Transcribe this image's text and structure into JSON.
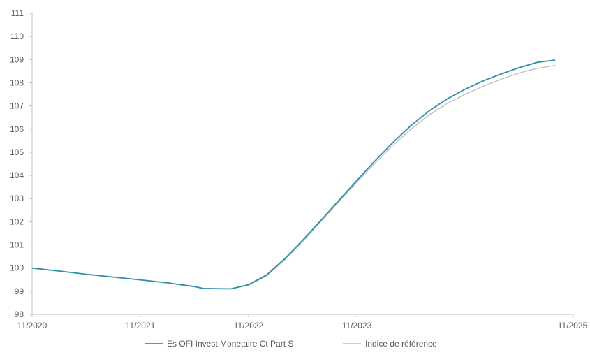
{
  "chart_data": {
    "type": "line",
    "title": "",
    "xlabel": "",
    "ylabel": "",
    "ylim": [
      98,
      111
    ],
    "yticks": [
      98,
      99,
      100,
      101,
      102,
      103,
      104,
      105,
      106,
      107,
      108,
      109,
      110,
      111
    ],
    "xrange": [
      "2020-11",
      "2025-11"
    ],
    "xticks": [
      {
        "label": "11/2020",
        "date": "2020-11"
      },
      {
        "label": "11/2021",
        "date": "2021-11"
      },
      {
        "label": "11/2022",
        "date": "2022-11"
      },
      {
        "label": "11/2023",
        "date": "2023-11"
      },
      {
        "label": "11/2025",
        "date": "2025-11"
      }
    ],
    "grid": false,
    "legend_position": "bottom",
    "series": [
      {
        "name": "Es OFI Invest Monetaire Ct Part S",
        "color": "#2E8FA8",
        "points": [
          [
            "2020-11",
            100.0
          ],
          [
            "2021-02",
            99.87
          ],
          [
            "2021-05",
            99.73
          ],
          [
            "2021-08",
            99.61
          ],
          [
            "2021-11",
            99.49
          ],
          [
            "2022-02",
            99.36
          ],
          [
            "2022-05",
            99.2
          ],
          [
            "2022-06",
            99.12
          ],
          [
            "2022-09",
            99.1
          ],
          [
            "2022-11",
            99.28
          ],
          [
            "2023-01",
            99.7
          ],
          [
            "2023-03",
            100.4
          ],
          [
            "2023-05",
            101.2
          ],
          [
            "2023-07",
            102.05
          ],
          [
            "2023-09",
            102.92
          ],
          [
            "2023-11",
            103.78
          ],
          [
            "2024-01",
            104.62
          ],
          [
            "2024-03",
            105.42
          ],
          [
            "2024-05",
            106.15
          ],
          [
            "2024-07",
            106.78
          ],
          [
            "2024-09",
            107.3
          ],
          [
            "2024-11",
            107.72
          ],
          [
            "2025-01",
            108.08
          ],
          [
            "2025-03",
            108.38
          ],
          [
            "2025-05",
            108.65
          ],
          [
            "2025-07",
            108.88
          ],
          [
            "2025-09",
            108.98
          ]
        ]
      },
      {
        "name": "Indice de référence",
        "color": "#BFBFBF",
        "points": [
          [
            "2020-11",
            100.0
          ],
          [
            "2021-02",
            99.87
          ],
          [
            "2021-05",
            99.73
          ],
          [
            "2021-08",
            99.61
          ],
          [
            "2021-11",
            99.49
          ],
          [
            "2022-02",
            99.36
          ],
          [
            "2022-05",
            99.2
          ],
          [
            "2022-06",
            99.12
          ],
          [
            "2022-09",
            99.1
          ],
          [
            "2022-11",
            99.26
          ],
          [
            "2023-01",
            99.66
          ],
          [
            "2023-03",
            100.35
          ],
          [
            "2023-05",
            101.15
          ],
          [
            "2023-07",
            102.0
          ],
          [
            "2023-09",
            102.86
          ],
          [
            "2023-11",
            103.7
          ],
          [
            "2024-01",
            104.52
          ],
          [
            "2024-03",
            105.3
          ],
          [
            "2024-05",
            106.0
          ],
          [
            "2024-07",
            106.6
          ],
          [
            "2024-09",
            107.1
          ],
          [
            "2024-11",
            107.5
          ],
          [
            "2025-01",
            107.85
          ],
          [
            "2025-03",
            108.15
          ],
          [
            "2025-05",
            108.42
          ],
          [
            "2025-07",
            108.62
          ],
          [
            "2025-09",
            108.75
          ]
        ]
      }
    ]
  }
}
